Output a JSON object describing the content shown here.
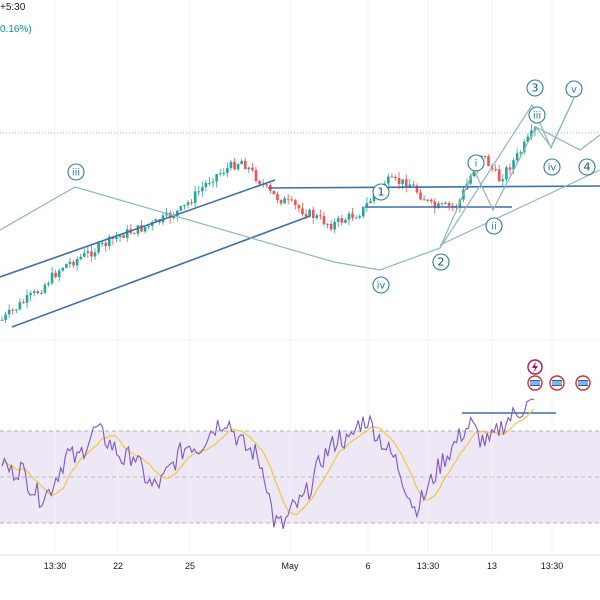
{
  "header": {
    "timezone_fragment": "+5:30",
    "change_fragment": "0.16%)"
  },
  "colors": {
    "up_candle": "#26a69a",
    "down_candle": "#ef5350",
    "trendline": "#3d6fa8",
    "wave_path": "#8fb7b7",
    "wave_label": "#2e7d9a",
    "rsi_line": "#7e57c2",
    "rsi_ma": "#f5c542",
    "rsi_band": "#ede7f6"
  },
  "icons": [
    "lightning-event-icon",
    "us-flag-event-icon",
    "us-flag-event-icon",
    "us-flag-event-icon"
  ],
  "chart_data": [
    {
      "type": "candlestick",
      "x_ticks": [
        "13:30",
        "22",
        "25",
        "May",
        "6",
        "13:30",
        "13",
        "13:30"
      ],
      "trend": [
        {
          "t": 0,
          "v": 0.0
        },
        {
          "t": 3,
          "v": 0.08
        },
        {
          "t": 6,
          "v": 0.15
        },
        {
          "t": 10,
          "v": 0.28
        },
        {
          "t": 15,
          "v": 0.36
        },
        {
          "t": 20,
          "v": 0.45
        },
        {
          "t": 25,
          "v": 0.5
        },
        {
          "t": 30,
          "v": 0.58
        },
        {
          "t": 35,
          "v": 0.75
        },
        {
          "t": 40,
          "v": 0.84
        },
        {
          "t": 45,
          "v": 0.66
        },
        {
          "t": 50,
          "v": 0.58
        },
        {
          "t": 55,
          "v": 0.5
        },
        {
          "t": 60,
          "v": 0.57
        },
        {
          "t": 64,
          "v": 0.73
        },
        {
          "t": 68,
          "v": 0.72
        },
        {
          "t": 72,
          "v": 0.59
        },
        {
          "t": 76,
          "v": 0.6
        },
        {
          "t": 80,
          "v": 0.88
        },
        {
          "t": 83,
          "v": 0.74
        },
        {
          "t": 86,
          "v": 0.86
        },
        {
          "t": 89,
          "v": 1.0
        }
      ],
      "wave_labels_circled": [
        "iii",
        "1",
        "i",
        "3",
        "iii",
        "v",
        "iv",
        "4",
        "ii",
        "2",
        "iv"
      ],
      "wave_labels_numbered": [
        "1",
        "2",
        "3",
        "4"
      ]
    },
    {
      "type": "line",
      "name": "",
      "levels": [
        30,
        50,
        70
      ],
      "description_series": "oscillator",
      "values": [
        55,
        50,
        52,
        45,
        40,
        42,
        50,
        58,
        55,
        62,
        68,
        64,
        60,
        55,
        58,
        50,
        44,
        46,
        52,
        58,
        62,
        60,
        66,
        70,
        72,
        65,
        60,
        58,
        50,
        30,
        28,
        35,
        38,
        45,
        55,
        60,
        65,
        62,
        70,
        72,
        66,
        60,
        55,
        45,
        35,
        40,
        48,
        55,
        60,
        66,
        70,
        64,
        62,
        68,
        72,
        75,
        78
      ]
    }
  ]
}
